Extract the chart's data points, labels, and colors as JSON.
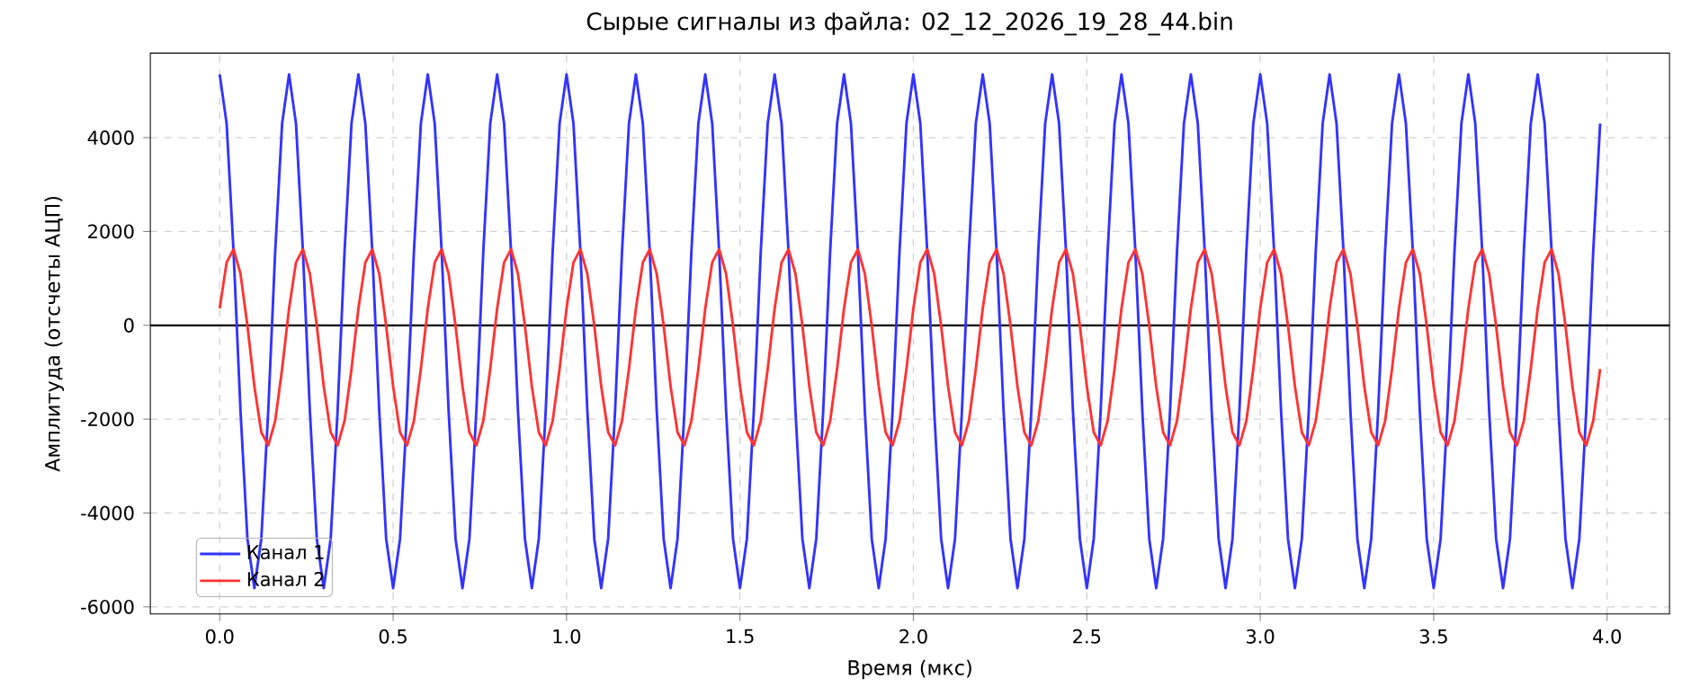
{
  "chart_data": {
    "type": "line",
    "title": "Сырые сигналы из файла: 02_12_2026_19_28_44.bin",
    "xlabel": "Время (мкс)",
    "ylabel": "Амплитуда (отсчеты АЦП)",
    "x": [
      0,
      0.02,
      0.04,
      0.06,
      0.08,
      0.1,
      0.12,
      0.14,
      0.16,
      0.18,
      0.2,
      0.22,
      0.24,
      0.26,
      0.28,
      0.3,
      0.32,
      0.34,
      0.36,
      0.38,
      0.4,
      0.42,
      0.44,
      0.46,
      0.48,
      0.5,
      0.52,
      0.54,
      0.56,
      0.58,
      0.6,
      0.62,
      0.64,
      0.66,
      0.68,
      0.7,
      0.72,
      0.74,
      0.76,
      0.78,
      0.8,
      0.82,
      0.84,
      0.86,
      0.88,
      0.9,
      0.92,
      0.94,
      0.96,
      0.98,
      1,
      1.02,
      1.04,
      1.06,
      1.08,
      1.1,
      1.12,
      1.14,
      1.16,
      1.18,
      1.2,
      1.22,
      1.24,
      1.26,
      1.28,
      1.3,
      1.32,
      1.34,
      1.36,
      1.38,
      1.4,
      1.42,
      1.44,
      1.46,
      1.48,
      1.5,
      1.52,
      1.54,
      1.56,
      1.58,
      1.6,
      1.62,
      1.64,
      1.66,
      1.68,
      1.7,
      1.72,
      1.74,
      1.76,
      1.78,
      1.8,
      1.82,
      1.84,
      1.86,
      1.88,
      1.9,
      1.92,
      1.94,
      1.96,
      1.98,
      2,
      2.02,
      2.04,
      2.06,
      2.08,
      2.1,
      2.12,
      2.14,
      2.16,
      2.18,
      2.2,
      2.22,
      2.24,
      2.26,
      2.28,
      2.3,
      2.32,
      2.34,
      2.36,
      2.38,
      2.4,
      2.42,
      2.44,
      2.46,
      2.48,
      2.5,
      2.52,
      2.54,
      2.56,
      2.58,
      2.6,
      2.62,
      2.64,
      2.66,
      2.68,
      2.7,
      2.72,
      2.74,
      2.76,
      2.78,
      2.8,
      2.82,
      2.84,
      2.86,
      2.88,
      2.9,
      2.92,
      2.94,
      2.96,
      2.98,
      3,
      3.02,
      3.04,
      3.06,
      3.08,
      3.1,
      3.12,
      3.14,
      3.16,
      3.18,
      3.2,
      3.22,
      3.24,
      3.26,
      3.28,
      3.3,
      3.32,
      3.34,
      3.36,
      3.38,
      3.4,
      3.42,
      3.44,
      3.46,
      3.48,
      3.5,
      3.52,
      3.54,
      3.56,
      3.58,
      3.6,
      3.62,
      3.64,
      3.66,
      3.68,
      3.7,
      3.72,
      3.74,
      3.76,
      3.78,
      3.8,
      3.82,
      3.84,
      3.86,
      3.88,
      3.9,
      3.92,
      3.94,
      3.96,
      3.98
    ],
    "series": [
      {
        "name": "Канал 1",
        "color": "#3333ff",
        "values": [
          5350,
          4300,
          1570,
          -1820,
          -4550,
          -5600,
          -4550,
          -1820,
          1570,
          4300,
          5350,
          4300,
          1570,
          -1820,
          -4550,
          -5600,
          -4550,
          -1820,
          1570,
          4300,
          5350,
          4300,
          1570,
          -1820,
          -4550,
          -5600,
          -4550,
          -1820,
          1570,
          4300,
          5350,
          4300,
          1570,
          -1820,
          -4550,
          -5600,
          -4550,
          -1820,
          1570,
          4300,
          5350,
          4300,
          1570,
          -1820,
          -4550,
          -5600,
          -4550,
          -1820,
          1570,
          4300,
          5350,
          4300,
          1570,
          -1820,
          -4550,
          -5600,
          -4550,
          -1820,
          1570,
          4300,
          5350,
          4300,
          1570,
          -1820,
          -4550,
          -5600,
          -4550,
          -1820,
          1570,
          4300,
          5350,
          4300,
          1570,
          -1820,
          -4550,
          -5600,
          -4550,
          -1820,
          1570,
          4300,
          5350,
          4300,
          1570,
          -1820,
          -4550,
          -5600,
          -4550,
          -1820,
          1570,
          4300,
          5350,
          4300,
          1570,
          -1820,
          -4550,
          -5600,
          -4550,
          -1820,
          1570,
          4300,
          5350,
          4300,
          1570,
          -1820,
          -4550,
          -5600,
          -4550,
          -1820,
          1570,
          4300,
          5350,
          4300,
          1570,
          -1820,
          -4550,
          -5600,
          -4550,
          -1820,
          1570,
          4300,
          5350,
          4300,
          1570,
          -1820,
          -4550,
          -5600,
          -4550,
          -1820,
          1570,
          4300,
          5350,
          4300,
          1570,
          -1820,
          -4550,
          -5600,
          -4550,
          -1820,
          1570,
          4300,
          5350,
          4300,
          1570,
          -1820,
          -4550,
          -5600,
          -4550,
          -1820,
          1570,
          4300,
          5350,
          4300,
          1570,
          -1820,
          -4550,
          -5600,
          -4550,
          -1820,
          1570,
          4300,
          5350,
          4300,
          1570,
          -1820,
          -4550,
          -5600,
          -4550,
          -1820,
          1570,
          4300,
          5350,
          4300,
          1570,
          -1820,
          -4550,
          -5600,
          -4550,
          -1820,
          1570,
          4300,
          5350,
          4300,
          1570,
          -1820,
          -4550,
          -5600,
          -4550,
          -1820,
          1570,
          4300,
          5350,
          4300,
          1570,
          -1820,
          -4550,
          -5600,
          -4550,
          -1820,
          1570,
          4300
        ]
      },
      {
        "name": "Канал 2",
        "color": "#ff3333",
        "values": [
          360,
          1340,
          1620,
          1100,
          -10,
          -1300,
          -2280,
          -2560,
          -2040,
          -930,
          360,
          1340,
          1620,
          1100,
          -10,
          -1300,
          -2280,
          -2560,
          -2040,
          -930,
          360,
          1340,
          1620,
          1100,
          -10,
          -1300,
          -2280,
          -2560,
          -2040,
          -930,
          360,
          1340,
          1620,
          1100,
          -10,
          -1300,
          -2280,
          -2560,
          -2040,
          -930,
          360,
          1340,
          1620,
          1100,
          -10,
          -1300,
          -2280,
          -2560,
          -2040,
          -930,
          360,
          1340,
          1620,
          1100,
          -10,
          -1300,
          -2280,
          -2560,
          -2040,
          -930,
          360,
          1340,
          1620,
          1100,
          -10,
          -1300,
          -2280,
          -2560,
          -2040,
          -930,
          360,
          1340,
          1620,
          1100,
          -10,
          -1300,
          -2280,
          -2560,
          -2040,
          -930,
          360,
          1340,
          1620,
          1100,
          -10,
          -1300,
          -2280,
          -2560,
          -2040,
          -930,
          360,
          1340,
          1620,
          1100,
          -10,
          -1300,
          -2280,
          -2560,
          -2040,
          -930,
          360,
          1340,
          1620,
          1100,
          -10,
          -1300,
          -2280,
          -2560,
          -2040,
          -930,
          360,
          1340,
          1620,
          1100,
          -10,
          -1300,
          -2280,
          -2560,
          -2040,
          -930,
          360,
          1340,
          1620,
          1100,
          -10,
          -1300,
          -2280,
          -2560,
          -2040,
          -930,
          360,
          1340,
          1620,
          1100,
          -10,
          -1300,
          -2280,
          -2560,
          -2040,
          -930,
          360,
          1340,
          1620,
          1100,
          -10,
          -1300,
          -2280,
          -2560,
          -2040,
          -930,
          360,
          1340,
          1620,
          1100,
          -10,
          -1300,
          -2280,
          -2560,
          -2040,
          -930,
          360,
          1340,
          1620,
          1100,
          -10,
          -1300,
          -2280,
          -2560,
          -2040,
          -930,
          360,
          1340,
          1620,
          1100,
          -10,
          -1300,
          -2280,
          -2560,
          -2040,
          -930,
          360,
          1340,
          1620,
          1100,
          -10,
          -1300,
          -2280,
          -2560,
          -2040,
          -930,
          360,
          1340,
          1620,
          1100,
          -10,
          -1300,
          -2280,
          -2560,
          -2040,
          -930
        ]
      }
    ],
    "xlim": [
      -0.2,
      4.18
    ],
    "ylim": [
      -6150,
      5800
    ],
    "xticks": [
      {
        "value": 0,
        "label": "0.0"
      },
      {
        "value": 0.5,
        "label": "0.5"
      },
      {
        "value": 1,
        "label": "1.0"
      },
      {
        "value": 1.5,
        "label": "1.5"
      },
      {
        "value": 2,
        "label": "2.0"
      },
      {
        "value": 2.5,
        "label": "2.5"
      },
      {
        "value": 3,
        "label": "3.0"
      },
      {
        "value": 3.5,
        "label": "3.5"
      },
      {
        "value": 4,
        "label": "4.0"
      }
    ],
    "yticks": [
      -6000,
      -4000,
      -2000,
      0,
      2000,
      4000
    ],
    "ref_lines": [
      {
        "axis": "y",
        "value": 0,
        "color": "#000000"
      }
    ],
    "grid": true,
    "legend": "bottom left",
    "marker": "none",
    "line_style": "solid"
  }
}
